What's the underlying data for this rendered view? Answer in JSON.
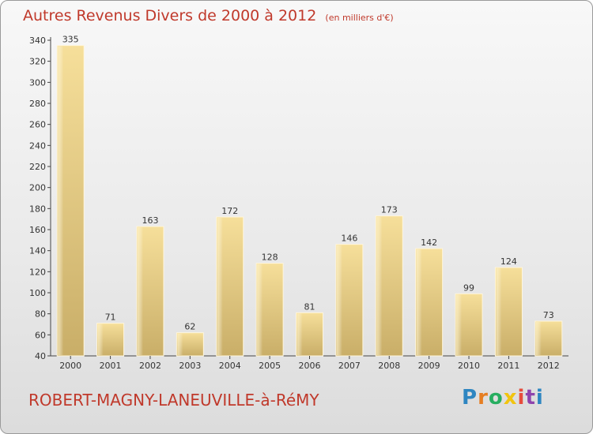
{
  "chart_data": {
    "type": "bar",
    "title": "Autres Revenus Divers de 2000 à 2012",
    "unit": "(en milliers d'€)",
    "categories": [
      "2000",
      "2001",
      "2002",
      "2003",
      "2004",
      "2005",
      "2006",
      "2007",
      "2008",
      "2009",
      "2010",
      "2011",
      "2012"
    ],
    "values": [
      335,
      71,
      163,
      62,
      172,
      128,
      81,
      146,
      173,
      142,
      99,
      124,
      73
    ],
    "ylim": [
      40,
      340
    ],
    "yticks": [
      40,
      60,
      80,
      100,
      120,
      140,
      160,
      180,
      200,
      220,
      240,
      260,
      280,
      300,
      320,
      340
    ],
    "grid": false,
    "bar_color": "#f2d68c"
  },
  "footer": {
    "commune": "ROBERT-MAGNY-LANEUVILLE-à-RéMY",
    "logo_letters": [
      "P",
      "r",
      "o",
      "x",
      "i",
      "t",
      "i"
    ],
    "logo_colors": [
      "#2e86c1",
      "#e67e22",
      "#27ae60",
      "#f1c40f",
      "#e74c3c",
      "#8e44ad",
      "#2e86c1"
    ]
  }
}
